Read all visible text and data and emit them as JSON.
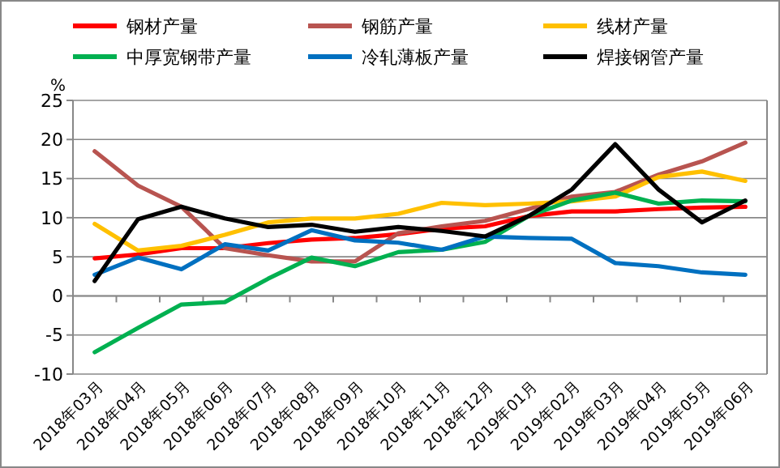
{
  "chart_data": {
    "type": "line",
    "ylabel": "%",
    "categories": [
      "2018年03月",
      "2018年04月",
      "2018年05月",
      "2018年06月",
      "2018年07月",
      "2018年08月",
      "2018年09月",
      "2018年10月",
      "2018年11月",
      "2018年12月",
      "2019年01月",
      "2019年02月",
      "2019年03月",
      "2019年04月",
      "2019年05月",
      "2019年06月"
    ],
    "series": [
      {
        "name": "钢材产量",
        "color": "#ff0000",
        "values": [
          4.8,
          5.3,
          6.1,
          6.1,
          6.75,
          7.2,
          7.4,
          7.9,
          8.6,
          8.9,
          10.2,
          10.8,
          10.8,
          11.1,
          11.3,
          11.4
        ]
      },
      {
        "name": "钢筋产量",
        "color": "#b85450",
        "values": [
          18.5,
          14.1,
          11.4,
          6.1,
          5.2,
          4.4,
          4.4,
          8.0,
          8.9,
          9.6,
          11.1,
          12.7,
          13.3,
          15.5,
          17.2,
          19.6
        ]
      },
      {
        "name": "线材产量",
        "color": "#ffc000",
        "values": [
          9.2,
          5.8,
          6.4,
          7.8,
          9.4,
          9.9,
          9.9,
          10.5,
          11.9,
          11.6,
          11.8,
          12.1,
          12.7,
          15.2,
          15.9,
          14.7
        ]
      },
      {
        "name": "中厚宽钢带产量",
        "color": "#00b050",
        "values": [
          -7.2,
          -4.1,
          -1.1,
          -0.8,
          2.2,
          4.9,
          3.8,
          5.6,
          5.9,
          6.9,
          10.2,
          12.2,
          13.2,
          11.8,
          12.2,
          12.1
        ]
      },
      {
        "name": "冷轧薄板产量",
        "color": "#0070c0",
        "values": [
          2.7,
          4.9,
          3.4,
          6.6,
          5.8,
          8.4,
          7.1,
          6.8,
          5.9,
          7.6,
          7.4,
          7.3,
          4.2,
          3.8,
          3.0,
          2.7
        ]
      },
      {
        "name": "焊接钢管产量",
        "color": "#000000",
        "values": [
          1.9,
          9.8,
          11.4,
          9.9,
          8.8,
          9.1,
          8.2,
          8.8,
          8.3,
          7.6,
          10.2,
          13.6,
          19.4,
          13.6,
          9.4,
          12.2
        ]
      }
    ],
    "ylim": [
      -10,
      25
    ],
    "yticks": [
      -10,
      -5,
      0,
      5,
      10,
      15,
      20,
      25
    ],
    "grid": "y",
    "legend": "top",
    "marker": "none",
    "line_style": "solid"
  }
}
